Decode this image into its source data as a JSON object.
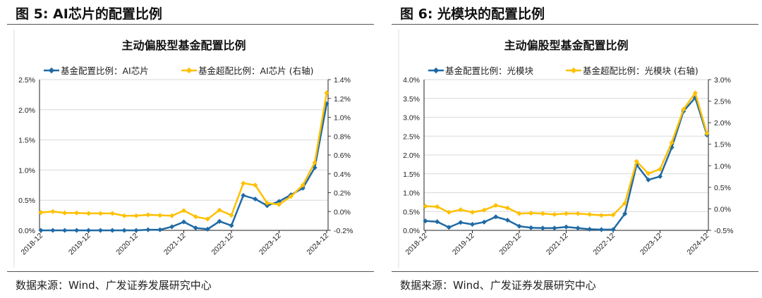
{
  "figures": [
    {
      "title": "图  5:  AI芯片的配置比例",
      "source": "数据来源：Wind、广发证券发展研究中心"
    },
    {
      "title": "图  6:  光模块的配置比例",
      "source": "数据来源：Wind、广发证券发展研究中心"
    }
  ],
  "colors": {
    "series_left": "#1f6aa5",
    "series_right": "#ffc000"
  },
  "chart_data": [
    {
      "type": "line",
      "title": "主动偏股型基金配置比例",
      "x_tick_labels": [
        "2018-12",
        "2019-12",
        "2020-12",
        "2021-12",
        "2022-12",
        "2023-12",
        "2024-12"
      ],
      "x_frequency": "quarterly",
      "x_range": [
        "2018-12",
        "2024-12"
      ],
      "y_left": {
        "ticks": [
          "0.0%",
          "0.5%",
          "1.0%",
          "1.5%",
          "2.0%",
          "2.5%"
        ],
        "range": [
          0,
          2.5
        ]
      },
      "y_right": {
        "ticks": [
          "-0.2%",
          "0.0%",
          "0.2%",
          "0.4%",
          "0.6%",
          "0.8%",
          "1.0%",
          "1.2%",
          "1.4%"
        ],
        "range": [
          -0.2,
          1.4
        ]
      },
      "grid": true,
      "legend": "top",
      "series": [
        {
          "name": "基金配置比例：AI芯片",
          "axis": "left",
          "values": [
            0,
            0,
            0,
            0,
            0,
            0,
            0,
            0,
            0,
            0.01,
            0.01,
            0.06,
            0.14,
            0.04,
            0.02,
            0.15,
            0.08,
            0.58,
            0.52,
            0.41,
            0.48,
            0.59,
            0.7,
            1.04,
            2.1
          ]
        },
        {
          "name": "基金超配比例：AI芯片 (右轴)",
          "axis": "right",
          "values": [
            -0.01,
            0,
            -0.015,
            -0.015,
            -0.02,
            -0.02,
            -0.02,
            -0.045,
            -0.045,
            -0.035,
            -0.04,
            -0.045,
            0.01,
            -0.055,
            -0.08,
            0.015,
            -0.04,
            0.3,
            0.28,
            0.09,
            0.075,
            0.16,
            0.28,
            0.52,
            1.26
          ]
        }
      ]
    },
    {
      "type": "line",
      "title": "主动偏股型基金配置比例",
      "x_tick_labels": [
        "2018-12",
        "2019-12",
        "2020-12",
        "2021-12",
        "2022-12",
        "2023-12",
        "2024-12"
      ],
      "x_frequency": "quarterly",
      "x_range": [
        "2018-12",
        "2024-12"
      ],
      "y_left": {
        "ticks": [
          "0.0%",
          "0.5%",
          "1.0%",
          "1.5%",
          "2.0%",
          "2.5%",
          "3.0%",
          "3.5%",
          "4.0%"
        ],
        "range": [
          0,
          4.0
        ]
      },
      "y_right": {
        "ticks": [
          "-0.5%",
          "0.0%",
          "0.5%",
          "1.0%",
          "1.5%",
          "2.0%",
          "2.5%",
          "3.0%"
        ],
        "range": [
          -0.5,
          3.0
        ]
      },
      "grid": true,
      "legend": "top",
      "series": [
        {
          "name": "基金配置比例：光模块",
          "axis": "left",
          "values": [
            0.25,
            0.23,
            0.08,
            0.21,
            0.16,
            0.22,
            0.36,
            0.27,
            0.11,
            0.07,
            0.06,
            0.06,
            0.09,
            0.06,
            0.03,
            0.02,
            0.02,
            0.44,
            1.74,
            1.34,
            1.43,
            2.2,
            3.16,
            3.52,
            2.53
          ]
        },
        {
          "name": "基金超配比例：光模块 (右轴)",
          "axis": "right",
          "values": [
            0.06,
            0.05,
            -0.08,
            -0.02,
            -0.08,
            -0.03,
            0.08,
            0.02,
            -0.11,
            -0.1,
            -0.11,
            -0.13,
            -0.11,
            -0.11,
            -0.13,
            -0.15,
            -0.14,
            0.13,
            1.1,
            0.82,
            0.92,
            1.54,
            2.31,
            2.69,
            1.75
          ]
        }
      ]
    }
  ]
}
